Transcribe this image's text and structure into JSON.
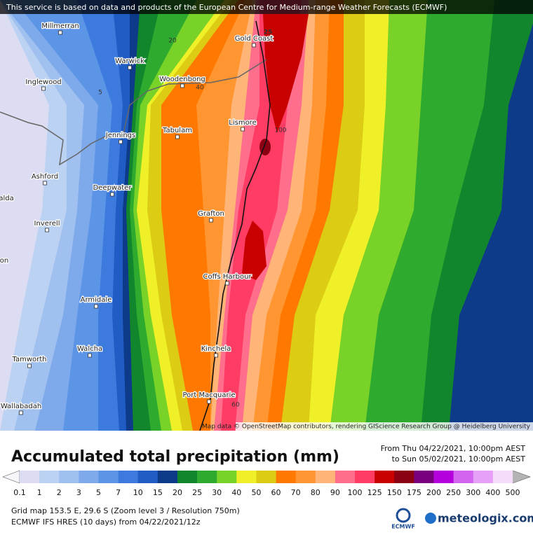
{
  "banner": "This service is based on data and products of the European Centre for Medium-range Weather Forecasts (ECMWF)",
  "map": {
    "places": [
      "Millmerran",
      "Warwick",
      "Inglewood",
      "Woodenbong",
      "Gold Coast",
      "Lismore",
      "Tabulam",
      "Jennings",
      "Ashford",
      "Deepwater",
      "Grafton",
      "Inverell",
      "Coffs Harbour",
      "Armidale",
      "Kinchela",
      "Walcha",
      "Tamworth",
      "Port Macquarie",
      "Wallabadah",
      "alda",
      "on"
    ],
    "contour_labels": [
      20,
      5,
      40,
      25,
      100,
      60
    ],
    "attribution": "Map data © OpenStreetMap contributors, rendering GIScience Research Group @ Heidelberg University"
  },
  "title": "Accumulated total precipitation (mm)",
  "period": [
    "From Thu 04/22/2021, 10:00pm AEST",
    "to Sun 05/02/2021, 10:00pm AEST"
  ],
  "legend": {
    "levels": [
      0.1,
      1,
      2,
      3,
      5,
      7,
      10,
      15,
      20,
      25,
      30,
      40,
      50,
      60,
      70,
      80,
      90,
      100,
      125,
      150,
      175,
      200,
      250,
      300,
      400,
      500
    ],
    "colors": [
      "#dcdcf2",
      "#bcd2f2",
      "#a0c0f0",
      "#7eaaec",
      "#5c94e6",
      "#3c7ade",
      "#1f5cc4",
      "#0e3a8a",
      "#12862c",
      "#2eaa2e",
      "#78d228",
      "#f0f028",
      "#dccc14",
      "#ff7800",
      "#ff9632",
      "#ffb478",
      "#ff6e8c",
      "#ff3c64",
      "#c80000",
      "#8c0014",
      "#78007c",
      "#b400dc",
      "#d264f0",
      "#e6a0f5",
      "#f5dcfa"
    ],
    "below_color": "#f5f5fa",
    "above_color": "#b4b4b4"
  },
  "footer": [
    "Grid map 153.5 E, 29.6 S (Zoom level 3 / Resolution 750m)",
    "ECMWF IFS HRES (10 days) from 04/22/2021/12z"
  ],
  "logos": [
    "ECMWF",
    "meteologix.com"
  ]
}
